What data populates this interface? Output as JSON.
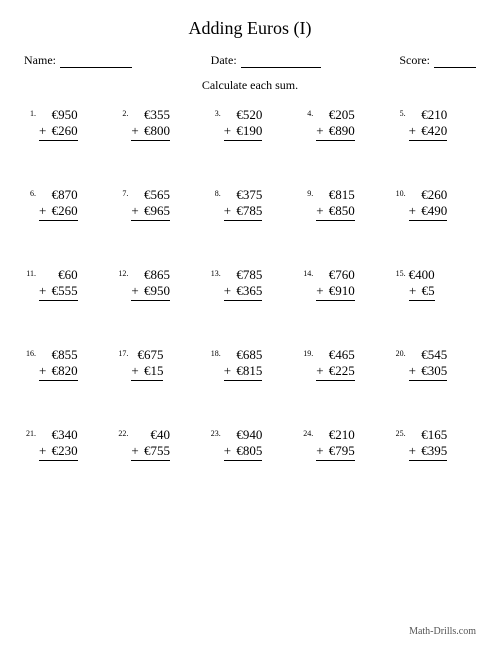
{
  "title": "Adding Euros (I)",
  "header": {
    "name_label": "Name:",
    "date_label": "Date:",
    "score_label": "Score:"
  },
  "instruction": "Calculate each sum.",
  "currency": "€",
  "operator": "+",
  "problems": [
    {
      "n": "1.",
      "a": "950",
      "b": "260"
    },
    {
      "n": "2.",
      "a": "355",
      "b": "800"
    },
    {
      "n": "3.",
      "a": "520",
      "b": "190"
    },
    {
      "n": "4.",
      "a": "205",
      "b": "890"
    },
    {
      "n": "5.",
      "a": "210",
      "b": "420"
    },
    {
      "n": "6.",
      "a": "870",
      "b": "260"
    },
    {
      "n": "7.",
      "a": "565",
      "b": "965"
    },
    {
      "n": "8.",
      "a": "375",
      "b": "785"
    },
    {
      "n": "9.",
      "a": "815",
      "b": "850"
    },
    {
      "n": "10.",
      "a": "260",
      "b": "490"
    },
    {
      "n": "11.",
      "a": "60",
      "b": "555"
    },
    {
      "n": "12.",
      "a": "865",
      "b": "950"
    },
    {
      "n": "13.",
      "a": "785",
      "b": "365"
    },
    {
      "n": "14.",
      "a": "760",
      "b": "910"
    },
    {
      "n": "15.",
      "a": "400",
      "b": "5"
    },
    {
      "n": "16.",
      "a": "855",
      "b": "820"
    },
    {
      "n": "17.",
      "a": "675",
      "b": "15"
    },
    {
      "n": "18.",
      "a": "685",
      "b": "815"
    },
    {
      "n": "19.",
      "a": "465",
      "b": "225"
    },
    {
      "n": "20.",
      "a": "545",
      "b": "305"
    },
    {
      "n": "21.",
      "a": "340",
      "b": "230"
    },
    {
      "n": "22.",
      "a": "40",
      "b": "755"
    },
    {
      "n": "23.",
      "a": "940",
      "b": "805"
    },
    {
      "n": "24.",
      "a": "210",
      "b": "795"
    },
    {
      "n": "25.",
      "a": "165",
      "b": "395"
    }
  ],
  "footer": "Math-Drills.com",
  "style": {
    "page_bg": "#ffffff",
    "text_color": "#000000",
    "title_fontsize": 18,
    "body_fontsize": 12,
    "problem_fontsize": 13,
    "pnum_fontsize": 8,
    "columns": 5,
    "rows": 5,
    "underline_color": "#000000"
  }
}
